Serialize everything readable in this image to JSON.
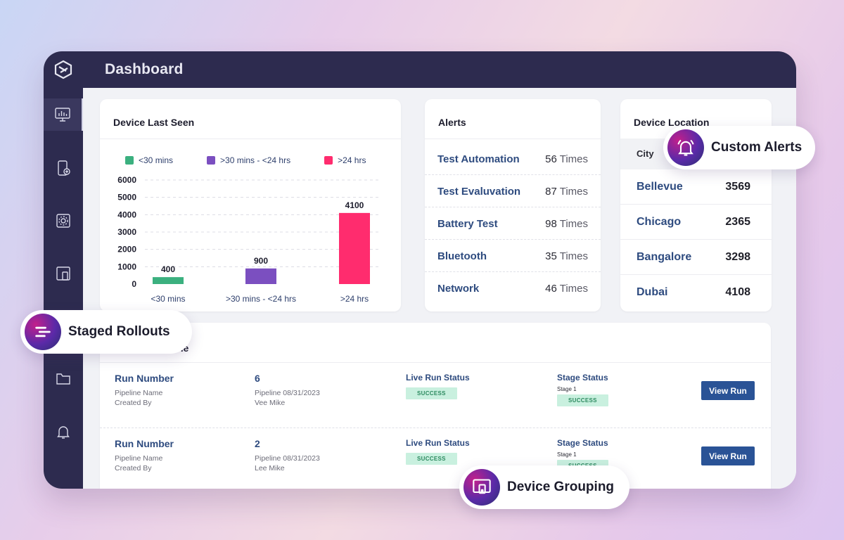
{
  "header": {
    "title": "Dashboard"
  },
  "sidebar": {
    "items": [
      {
        "icon": "monitor-chart-icon",
        "active": true
      },
      {
        "icon": "mobile-plus-icon",
        "active": false
      },
      {
        "icon": "settings-box-icon",
        "active": false
      },
      {
        "icon": "devices-icon",
        "active": false
      },
      {
        "icon": "staged-rollouts-icon",
        "active": false
      },
      {
        "icon": "folder-icon",
        "active": false
      },
      {
        "icon": "bell-icon",
        "active": false
      }
    ]
  },
  "device_last_seen": {
    "title": "Device Last Seen",
    "chart_data": {
      "type": "bar",
      "categories": [
        "<30 mins",
        ">30 mins - <24 hrs",
        ">24 hrs"
      ],
      "values": [
        400,
        900,
        4100
      ],
      "colors": [
        "#3bb07f",
        "#7b4fc0",
        "#ff2c6e"
      ],
      "legend": [
        "<30 mins",
        ">30 mins - <24 hrs",
        ">24 hrs"
      ],
      "yticks": [
        "0",
        "1000",
        "2000",
        "3000",
        "4000",
        "5000",
        "6000"
      ],
      "ylim": [
        0,
        6000
      ],
      "grid": true,
      "legend_position": "top"
    }
  },
  "alerts": {
    "title": "Alerts",
    "items": [
      {
        "name": "Test Automation",
        "count": "56",
        "unit": "Times"
      },
      {
        "name": "Test Evaluvation",
        "count": "87",
        "unit": "Times"
      },
      {
        "name": "Battery Test",
        "count": "98",
        "unit": "Times"
      },
      {
        "name": "Bluetooth",
        "count": "35",
        "unit": "Times"
      },
      {
        "name": "Network",
        "count": "46",
        "unit": "Times"
      }
    ]
  },
  "location": {
    "title": "Device Location",
    "column": "City",
    "rows": [
      {
        "city": "Bellevue",
        "value": "3569"
      },
      {
        "city": "Chicago",
        "value": "2365"
      },
      {
        "city": "Bangalore",
        "value": "3298"
      },
      {
        "city": "Dubai",
        "value": "4108"
      }
    ]
  },
  "pipeline": {
    "title_fragment": "ne",
    "rows": [
      {
        "run_label": "Run Number",
        "name_label": "Pipeline Name",
        "created_label": "Created By",
        "run_number": "6",
        "pipeline_name": "Pipeline 08/31/2023",
        "created_by": "Vee Mike",
        "live_label": "Live Run Status",
        "live_status": "SUCCESS",
        "stage_label": "Stage Status",
        "stage_name": "Stage 1",
        "stage_status": "SUCCESS",
        "button": "View Run"
      },
      {
        "run_label": "Run Number",
        "name_label": "Pipeline Name",
        "created_label": "Created By",
        "run_number": "2",
        "pipeline_name": "Pipeline 08/31/2023",
        "created_by": "Lee Mike",
        "live_label": "Live Run Status",
        "live_status": "SUCCESS",
        "stage_label": "Stage Status",
        "stage_name": "Stage 1",
        "stage_status": "SUCCESS",
        "button": "View Run"
      }
    ]
  },
  "pills": {
    "custom_alerts": "Custom Alerts",
    "staged_rollouts": "Staged Rollouts",
    "device_grouping": "Device Grouping"
  }
}
